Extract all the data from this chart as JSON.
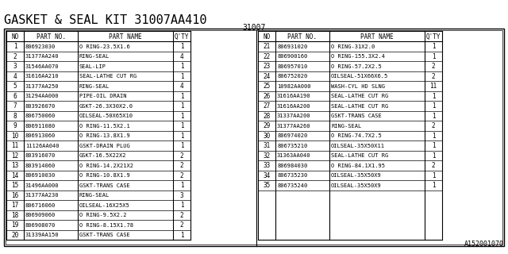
{
  "title": "GASKET & SEAL KIT 31007AA410",
  "subtitle": "31007",
  "footer": "A152001070",
  "background_color": "#ffffff",
  "border_color": "#000000",
  "left_table": {
    "headers": [
      "NO",
      "PART NO.",
      "PART NAME",
      "Q'TY"
    ],
    "rows": [
      [
        "1",
        "806923030",
        "O RING-23.5X1.6",
        "1"
      ],
      [
        "2",
        "31377AA240",
        "RING-SEAL",
        "4"
      ],
      [
        "3",
        "31546AA070",
        "SEAL-LIP",
        "1"
      ],
      [
        "4",
        "31616AA210",
        "SEAL-LATHE CUT RG",
        "1"
      ],
      [
        "5",
        "31377AA250",
        "RING-SEAL",
        "4"
      ],
      [
        "6",
        "31294AA000",
        "PIPE-OIL DRAIN",
        "1"
      ],
      [
        "7",
        "803926070",
        "GSKT-26.3X30X2.0",
        "1"
      ],
      [
        "8",
        "806750060",
        "OILSEAL-50X65X10",
        "1"
      ],
      [
        "9",
        "806911080",
        "O RING-11.5X2.1",
        "1"
      ],
      [
        "10",
        "806913060",
        "O RING-13.8X1.9",
        "1"
      ],
      [
        "11",
        "11126AA040",
        "GSKT-DRAIN PLUG",
        "1"
      ],
      [
        "12",
        "803916070",
        "GSKT-16.5X22X2",
        "2"
      ],
      [
        "13",
        "803914060",
        "O RING-14.2X21X2",
        "2"
      ],
      [
        "14",
        "806910030",
        "O RING-10.8X1.9",
        "2"
      ],
      [
        "15",
        "31496AA000",
        "GSKT-TRANS CASE",
        "1"
      ],
      [
        "16",
        "31377AA230",
        "RING-SEAL",
        "3"
      ],
      [
        "17",
        "806716060",
        "OILSEAL-16X25X5",
        "1"
      ],
      [
        "18",
        "806909060",
        "O RING-9.5X2.2",
        "2"
      ],
      [
        "19",
        "806908070",
        "O RING-8.15X1.78",
        "2"
      ],
      [
        "20",
        "31339AA150",
        "GSKT-TRANS CASE",
        "1"
      ]
    ]
  },
  "right_table": {
    "headers": [
      "NO",
      "PART NO.",
      "PART NAME",
      "Q'TY"
    ],
    "rows": [
      [
        "21",
        "806931020",
        "O RING-31X2.0",
        "1"
      ],
      [
        "22",
        "806900160",
        "O RING-155.3X2.4",
        "1"
      ],
      [
        "23",
        "806957010",
        "O RING-57.2X2.5",
        "2"
      ],
      [
        "24",
        "806752020",
        "OILSEAL-51X66X6.5",
        "2"
      ],
      [
        "25",
        "10982AA000",
        "WASH-CYL HD SLNG",
        "11"
      ],
      [
        "26",
        "31616AA190",
        "SEAL-LATHE CUT RG",
        "1"
      ],
      [
        "27",
        "31616AA200",
        "SEAL-LATHE CUT RG",
        "1"
      ],
      [
        "28",
        "31337AA200",
        "GSKT-TRANS CASE",
        "1"
      ],
      [
        "29",
        "31377AA260",
        "RING-SEAL",
        "2"
      ],
      [
        "30",
        "806974020",
        "O RING-74.7X2.5",
        "1"
      ],
      [
        "31",
        "806735210",
        "OILSEAL-35X50X11",
        "1"
      ],
      [
        "32",
        "31363AA040",
        "SEAL-LATHE CUT RG",
        "1"
      ],
      [
        "33",
        "806984030",
        "O RING-84.1X1.95",
        "2"
      ],
      [
        "34",
        "806735230",
        "OILSEAL-35X50X9",
        "1"
      ],
      [
        "35",
        "806735240",
        "OILSEAL-35X50X9",
        "1"
      ]
    ]
  }
}
